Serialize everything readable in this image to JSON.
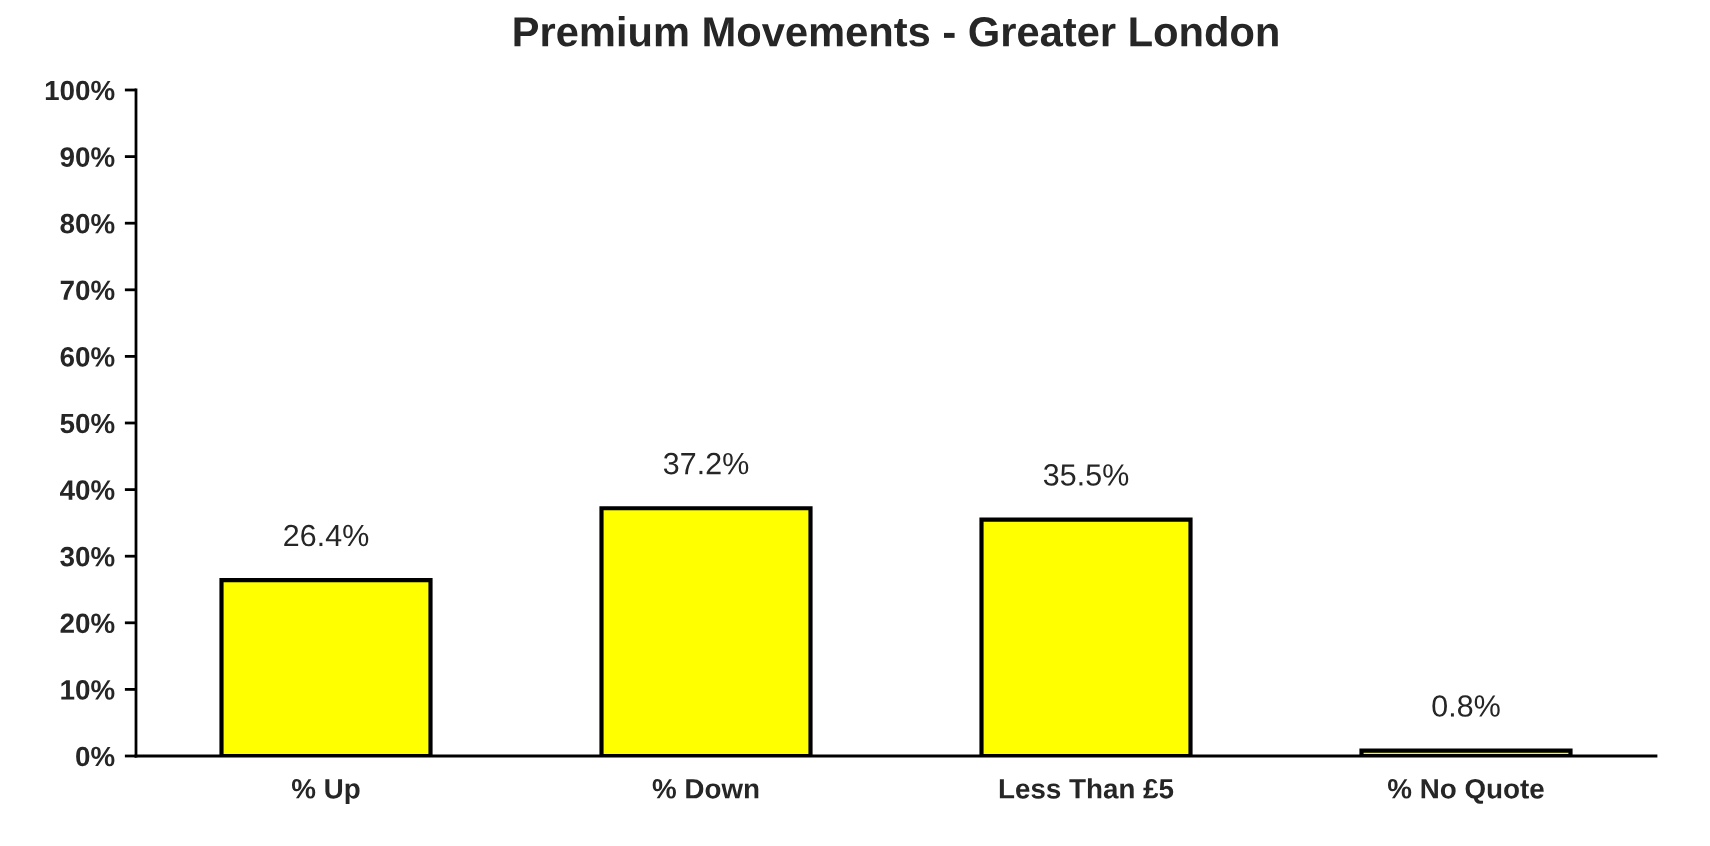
{
  "chart_data": {
    "type": "bar",
    "title": "Premium Movements - Greater London",
    "categories": [
      "% Up",
      "% Down",
      "Less Than £5",
      "% No Quote"
    ],
    "values": [
      26.4,
      37.2,
      35.5,
      0.8
    ],
    "value_labels": [
      "26.4%",
      "37.2%",
      "35.5%",
      "0.8%"
    ],
    "color": "#ffff00",
    "ylim": [
      0,
      100
    ],
    "yticks": [
      {
        "value": 0,
        "label": "0%"
      },
      {
        "value": 10,
        "label": "10%"
      },
      {
        "value": 20,
        "label": "20%"
      },
      {
        "value": 30,
        "label": "30%"
      },
      {
        "value": 40,
        "label": "40%"
      },
      {
        "value": 50,
        "label": "50%"
      },
      {
        "value": 60,
        "label": "60%"
      },
      {
        "value": 70,
        "label": "70%"
      },
      {
        "value": 80,
        "label": "80%"
      },
      {
        "value": 90,
        "label": "90%"
      },
      {
        "value": 100,
        "label": "100%"
      }
    ],
    "grid": false,
    "legend": false
  }
}
